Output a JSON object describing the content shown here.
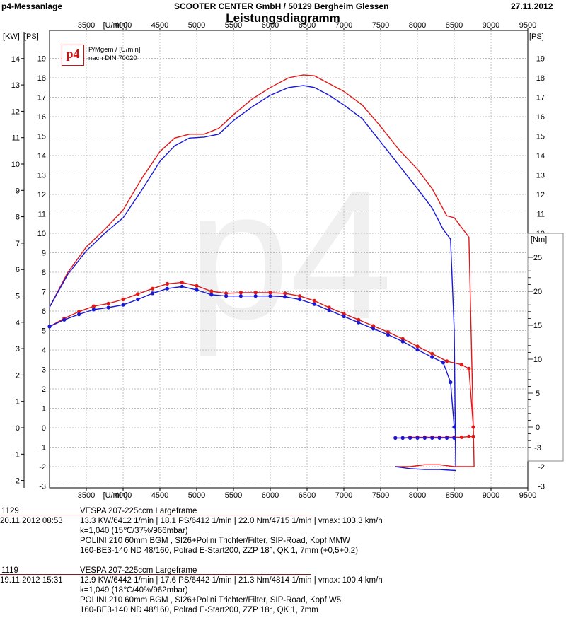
{
  "header": {
    "left": "p4-Messanlage",
    "center": "SCOOTER CENTER GmbH / 50129 Bergheim Glessen",
    "right": "27.11.2012",
    "title": "Leistungsdiagramm"
  },
  "legend": {
    "logo": "p4",
    "line1": "P/Mgem / [U/min]",
    "line2": "nach DIN 70020"
  },
  "colors": {
    "run1": "#e01818",
    "run2": "#1818d8",
    "grid": "#a8a8a8",
    "watermark": "#f0f0f0"
  },
  "chart_data": {
    "type": "line",
    "title": "Leistungsdiagramm",
    "xlabel": "[U/min]",
    "xlim": [
      3000,
      9500
    ],
    "x_ticks": [
      "3500",
      "4000",
      "4500",
      "5000",
      "5500",
      "6000",
      "6500",
      "7000",
      "7500",
      "8000",
      "8500",
      "9000",
      "9500"
    ],
    "axes": {
      "kw": {
        "label": "[KW]",
        "range": [
          -2,
          14
        ],
        "ticks": [
          "-2",
          "-1",
          "0",
          "1",
          "2",
          "3",
          "4",
          "5",
          "6",
          "7",
          "8",
          "9",
          "10",
          "11",
          "12",
          "13",
          "14"
        ]
      },
      "ps_left": {
        "label": "[PS]",
        "range": [
          -3,
          19
        ],
        "ticks": [
          "-3",
          "-2",
          "-1",
          "0",
          "1",
          "2",
          "3",
          "4",
          "5",
          "6",
          "7",
          "8",
          "9",
          "10",
          "11",
          "12",
          "13",
          "14",
          "15",
          "16",
          "17",
          "18",
          "19"
        ]
      },
      "ps_right": {
        "label": "[PS]",
        "range": [
          -3,
          19
        ],
        "ticks": [
          "-3",
          "-2",
          "-1",
          "0",
          "1",
          "2",
          "3",
          "4",
          "5",
          "6",
          "7",
          "8",
          "9",
          "10",
          "11",
          "12",
          "13",
          "14",
          "15",
          "16",
          "17",
          "18",
          "19"
        ]
      },
      "nm_right": {
        "label": "[Nm]",
        "range": [
          -3,
          25
        ],
        "ticks": [
          "-3",
          "0",
          "5",
          "10",
          "15",
          "20",
          "25"
        ]
      }
    },
    "grid": true,
    "watermark": "p4",
    "series": [
      {
        "name": "1129",
        "color": "#e01818",
        "kind": "power_ps",
        "x": [
          3000,
          3250,
          3500,
          3750,
          4000,
          4250,
          4500,
          4700,
          4900,
          5100,
          5300,
          5500,
          5750,
          6000,
          6250,
          6450,
          6600,
          6800,
          7000,
          7250,
          7500,
          7750,
          8000,
          8200,
          8400,
          8500,
          8600,
          8700,
          8760,
          8770
        ],
        "y": [
          6.2,
          8.0,
          9.3,
          10.2,
          11.2,
          12.8,
          14.2,
          14.9,
          15.1,
          15.1,
          15.4,
          16.1,
          16.9,
          17.5,
          18.0,
          18.15,
          18.1,
          17.7,
          17.3,
          16.6,
          15.5,
          14.3,
          13.3,
          12.3,
          10.9,
          10.8,
          10.3,
          9.8,
          0.0,
          -2.0
        ]
      },
      {
        "name": "1119",
        "color": "#1818d8",
        "kind": "power_ps",
        "x": [
          3000,
          3250,
          3500,
          3750,
          4000,
          4250,
          4500,
          4700,
          4900,
          5100,
          5300,
          5500,
          5750,
          6000,
          6250,
          6450,
          6600,
          6800,
          7000,
          7250,
          7500,
          7750,
          8000,
          8200,
          8350,
          8450,
          8500,
          8520
        ],
        "y": [
          6.2,
          7.9,
          9.1,
          10.0,
          10.8,
          12.2,
          13.7,
          14.5,
          14.9,
          14.95,
          15.1,
          15.8,
          16.5,
          17.1,
          17.5,
          17.6,
          17.5,
          17.1,
          16.6,
          15.9,
          14.7,
          13.5,
          12.3,
          11.3,
          10.2,
          9.7,
          5.0,
          -2.0
        ]
      },
      {
        "name": "1129",
        "color": "#e01818",
        "kind": "torque_nm",
        "x": [
          3000,
          3200,
          3400,
          3600,
          3800,
          4000,
          4200,
          4400,
          4600,
          4800,
          5000,
          5200,
          5400,
          5600,
          5800,
          6000,
          6200,
          6400,
          6600,
          6800,
          7000,
          7200,
          7400,
          7600,
          7800,
          8000,
          8200,
          8400,
          8600,
          8700,
          8760
        ],
        "y": [
          14.8,
          16.0,
          17.0,
          17.8,
          18.2,
          18.8,
          19.6,
          20.4,
          21.1,
          21.3,
          20.8,
          20.0,
          19.7,
          19.8,
          19.8,
          19.8,
          19.7,
          19.3,
          18.6,
          17.6,
          16.7,
          15.8,
          14.9,
          14.0,
          13.0,
          11.9,
          10.8,
          9.7,
          9.2,
          8.6,
          0.0
        ]
      },
      {
        "name": "1119",
        "color": "#1818d8",
        "kind": "torque_nm",
        "x": [
          3000,
          3200,
          3400,
          3600,
          3800,
          4000,
          4200,
          4400,
          4600,
          4800,
          5000,
          5200,
          5400,
          5600,
          5800,
          6000,
          6200,
          6400,
          6600,
          6800,
          7000,
          7200,
          7400,
          7600,
          7800,
          8000,
          8200,
          8350,
          8450,
          8500
        ],
        "y": [
          14.8,
          15.8,
          16.6,
          17.3,
          17.6,
          18.0,
          18.8,
          19.7,
          20.4,
          20.7,
          20.2,
          19.5,
          19.3,
          19.3,
          19.3,
          19.3,
          19.2,
          18.8,
          18.1,
          17.2,
          16.3,
          15.4,
          14.5,
          13.6,
          12.6,
          11.4,
          10.3,
          9.5,
          6.6,
          0.0
        ]
      },
      {
        "name": "1129",
        "color": "#e01818",
        "kind": "rolldown_nm",
        "x": [
          7700,
          7800,
          7900,
          8000,
          8100,
          8200,
          8300,
          8400,
          8500,
          8600,
          8700,
          8760
        ],
        "y": [
          -1.6,
          -1.6,
          -1.5,
          -1.5,
          -1.5,
          -1.5,
          -1.5,
          -1.5,
          -1.5,
          -1.5,
          -1.4,
          -1.4
        ]
      },
      {
        "name": "1119",
        "color": "#1818d8",
        "kind": "rolldown_nm",
        "x": [
          7700,
          7800,
          7900,
          8000,
          8100,
          8200,
          8300,
          8400,
          8500
        ],
        "y": [
          -1.6,
          -1.6,
          -1.6,
          -1.6,
          -1.6,
          -1.6,
          -1.6,
          -1.6,
          -1.6
        ]
      },
      {
        "name": "1129",
        "color": "#e01818",
        "kind": "rolldown_ps",
        "x": [
          7700,
          7900,
          8100,
          8300,
          8500,
          8700,
          8770
        ],
        "y": [
          -2.0,
          -2.0,
          -1.9,
          -1.9,
          -2.0,
          -2.0,
          -2.0
        ]
      },
      {
        "name": "1119",
        "color": "#1818d8",
        "kind": "rolldown_ps",
        "x": [
          7700,
          7900,
          8100,
          8300,
          8520
        ],
        "y": [
          -2.0,
          -2.1,
          -2.15,
          -2.15,
          -2.2
        ]
      }
    ]
  },
  "runs": [
    {
      "id": "1129",
      "date": "20.11.2012  08:53",
      "vehicle": "VESPA 207-225ccm Largeframe",
      "line1": "13.3 KW/6412 1/min  |  18.1 PS/6412 1/min  |  22.0 Nm/4715 1/min | vmax: 103.3 km/h",
      "line2": "k=1,040 (15℃/37%/966mbar)",
      "line3": "POLINI 210 60mm BGM , SI26+Polini Trichter/Filter, SIP-Road, Kopf MMW",
      "line4": "160-BE3-140 ND 48/160, Polrad E-Start200, ZZP 18°, QK 1, 7mm (+0,5+0,2)"
    },
    {
      "id": "1119",
      "date": "19.11.2012  15:31",
      "vehicle": "VESPA 207-225ccm Largeframe",
      "line1": "12.9 KW/6442 1/min  |  17.6 PS/6442 1/min  |  21.3 Nm/4814 1/min | vmax: 100.4 km/h",
      "line2": "k=1,049 (18℃/40%/962mbar)",
      "line3": "POLINI 210 60mm BGM , SI26+Polini Trichter/Filter, SIP-Road, Kopf W5",
      "line4": "160-BE3-140 ND 48/160, Polrad E-Start200, ZZP 18°, QK 1, 7mm"
    }
  ]
}
